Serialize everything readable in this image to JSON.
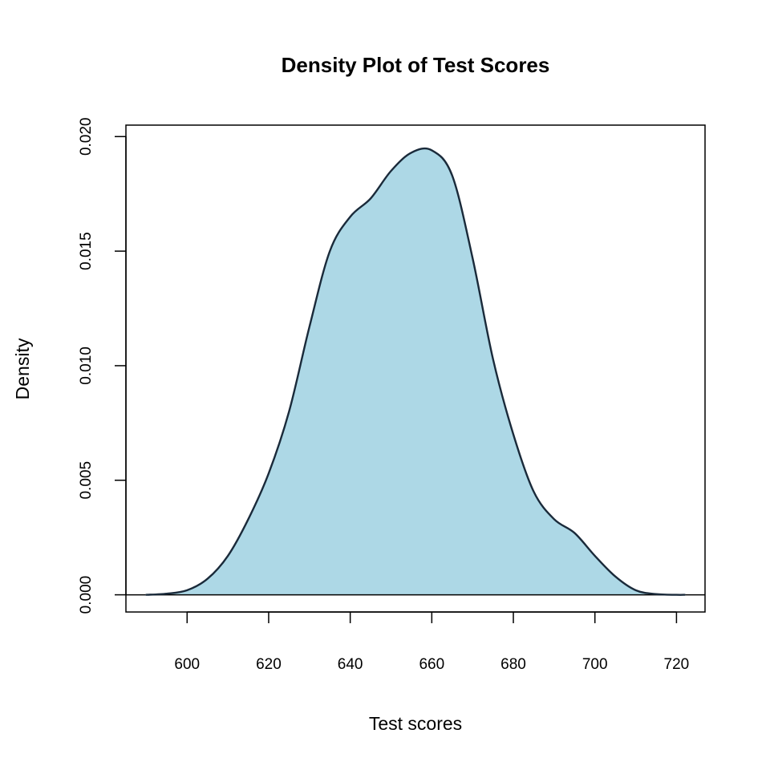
{
  "chart_data": {
    "type": "area",
    "title": "Density Plot of Test Scores",
    "xlabel": "Test scores",
    "ylabel": "Density",
    "xlim": [
      585,
      727
    ],
    "ylim": [
      -0.00075,
      0.0205
    ],
    "x_ticks": [
      "600",
      "620",
      "640",
      "660",
      "680",
      "700",
      "720"
    ],
    "y_ticks": [
      "0.000",
      "0.005",
      "0.010",
      "0.015",
      "0.020"
    ],
    "fill_color": "#add8e6",
    "line_color": "#1a2a3a",
    "baseline_color": "#000000",
    "grid": false,
    "series": [
      {
        "x": [
          590,
          595,
          600,
          605,
          610,
          615,
          620,
          625,
          630,
          635,
          640,
          645,
          650,
          655,
          660,
          665,
          670,
          675,
          680,
          685,
          690,
          695,
          700,
          705,
          710,
          715,
          720,
          722
        ],
        "y": [
          0.0,
          5e-05,
          0.0002,
          0.0007,
          0.0017,
          0.0033,
          0.0053,
          0.008,
          0.0117,
          0.015,
          0.0165,
          0.0173,
          0.0185,
          0.0193,
          0.0194,
          0.0183,
          0.0147,
          0.0103,
          0.007,
          0.0045,
          0.0033,
          0.0027,
          0.0017,
          0.0008,
          0.0002,
          3e-05,
          0.0,
          0.0
        ]
      }
    ]
  }
}
